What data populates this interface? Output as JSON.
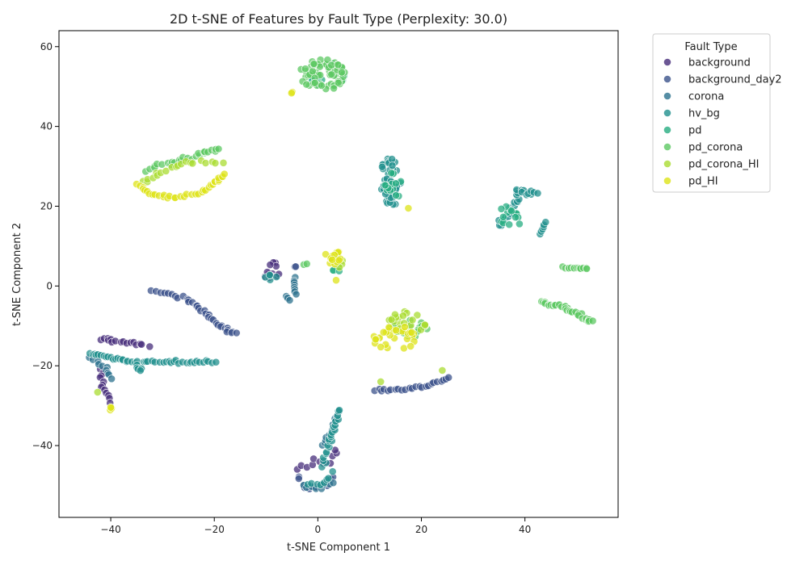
{
  "chart_data": {
    "type": "scatter",
    "title": "2D t-SNE of Features by Fault Type (Perplexity: 30.0)",
    "xlabel": "t-SNE Component 1",
    "ylabel": "t-SNE Component 2",
    "xlim": [
      -50,
      58
    ],
    "ylim": [
      -58,
      64
    ],
    "xticks": [
      -40,
      -20,
      0,
      20,
      40
    ],
    "xtick_labels": [
      "−40",
      "−20",
      "0",
      "20",
      "40"
    ],
    "yticks": [
      -40,
      -20,
      0,
      20,
      40,
      60
    ],
    "ytick_labels": [
      "−40",
      "−20",
      "0",
      "20",
      "40",
      "60"
    ],
    "grid": false,
    "legend": {
      "title": "Fault Type",
      "position": "outside-right-top"
    },
    "series": [
      {
        "name": "background",
        "color": "#472d7b",
        "clusters": [
          {
            "type": "blob",
            "cx": -9,
            "cy": 4,
            "rx": 1.8,
            "ry": 2.2,
            "n": 14
          },
          {
            "type": "path",
            "pts": [
              [
                -42,
                -13
              ],
              [
                -38,
                -14
              ],
              [
                -33,
                -15
              ]
            ],
            "n": 16,
            "jitter": 0.9
          },
          {
            "type": "path",
            "pts": [
              [
                -42,
                -21
              ],
              [
                -41.5,
                -25
              ],
              [
                -40,
                -29
              ]
            ],
            "n": 12,
            "jitter": 0.6
          },
          {
            "type": "path",
            "pts": [
              [
                -4,
                -46
              ],
              [
                -1,
                -44
              ],
              [
                2,
                -45
              ],
              [
                4,
                -41
              ]
            ],
            "n": 12,
            "jitter": 1.0
          }
        ]
      },
      {
        "name": "background_day2",
        "color": "#3b528b",
        "clusters": [
          {
            "type": "path",
            "pts": [
              [
                -32,
                -1
              ],
              [
                -26,
                -3
              ],
              [
                -22,
                -6
              ],
              [
                -19,
                -10
              ],
              [
                -16,
                -12
              ]
            ],
            "n": 34,
            "jitter": 0.7
          },
          {
            "type": "path",
            "pts": [
              [
                11,
                -26
              ],
              [
                16,
                -26
              ],
              [
                21,
                -25
              ],
              [
                25,
                -23
              ]
            ],
            "n": 24,
            "jitter": 0.5
          },
          {
            "type": "path",
            "pts": [
              [
                -4,
                -48
              ],
              [
                -2,
                -51
              ],
              [
                1,
                -50
              ],
              [
                3,
                -48
              ]
            ],
            "n": 12,
            "jitter": 0.8
          },
          {
            "type": "blob",
            "cx": -4.5,
            "cy": 5,
            "rx": 0.3,
            "ry": 0.3,
            "n": 2
          }
        ]
      },
      {
        "name": "corona",
        "color": "#2c728e",
        "clusters": [
          {
            "type": "path",
            "pts": [
              [
                -4.5,
                2
              ],
              [
                -4.3,
                -2
              ]
            ],
            "n": 8,
            "jitter": 0.3
          },
          {
            "type": "path",
            "pts": [
              [
                -6,
                -2.5
              ],
              [
                -5.5,
                -3.5
              ]
            ],
            "n": 3,
            "jitter": 0.3
          },
          {
            "type": "path",
            "pts": [
              [
                -44,
                -18
              ],
              [
                -41,
                -20
              ],
              [
                -40,
                -23
              ]
            ],
            "n": 10,
            "jitter": 0.6
          },
          {
            "type": "path",
            "pts": [
              [
                1,
                -40
              ],
              [
                3,
                -36
              ],
              [
                4,
                -32
              ]
            ],
            "n": 14,
            "jitter": 0.6
          },
          {
            "type": "path",
            "pts": [
              [
                -3,
                -50
              ],
              [
                0,
                -51
              ],
              [
                3,
                -49
              ]
            ],
            "n": 8,
            "jitter": 0.6
          }
        ]
      },
      {
        "name": "hv_bg",
        "color": "#21908d",
        "clusters": [
          {
            "type": "path",
            "pts": [
              [
                -44,
                -17
              ],
              [
                -40,
                -18
              ],
              [
                -36,
                -19
              ],
              [
                -30,
                -19
              ],
              [
                -25,
                -19
              ],
              [
                -20,
                -19
              ]
            ],
            "n": 46,
            "jitter": 0.5
          },
          {
            "type": "path",
            "pts": [
              [
                -35,
                -20
              ],
              [
                -34,
                -21
              ]
            ],
            "n": 5,
            "jitter": 0.6
          },
          {
            "type": "path",
            "pts": [
              [
                1,
                -45
              ],
              [
                2,
                -40
              ],
              [
                3,
                -36
              ],
              [
                4,
                -31
              ]
            ],
            "n": 22,
            "jitter": 0.7
          },
          {
            "type": "path",
            "pts": [
              [
                -2,
                -50
              ],
              [
                1,
                -50
              ],
              [
                3,
                -47
              ]
            ],
            "n": 8,
            "jitter": 0.8
          },
          {
            "type": "blob",
            "cx": 14,
            "cy": 26,
            "rx": 2.2,
            "ry": 6.5,
            "n": 45
          },
          {
            "type": "path",
            "pts": [
              [
                35,
                15
              ],
              [
                38,
                20
              ],
              [
                39,
                24
              ],
              [
                42,
                23
              ]
            ],
            "n": 28,
            "jitter": 1.0
          },
          {
            "type": "path",
            "pts": [
              [
                43,
                13
              ],
              [
                44,
                16
              ]
            ],
            "n": 6,
            "jitter": 0.3
          },
          {
            "type": "blob",
            "cx": -9,
            "cy": 2.5,
            "rx": 1.5,
            "ry": 1.0,
            "n": 5
          }
        ]
      },
      {
        "name": "pd",
        "color": "#27ad81",
        "clusters": [
          {
            "type": "blob",
            "cx": 14.5,
            "cy": 25,
            "rx": 1.6,
            "ry": 4.0,
            "n": 14
          },
          {
            "type": "blob",
            "cx": 37,
            "cy": 17,
            "rx": 2.2,
            "ry": 3.5,
            "n": 14
          },
          {
            "type": "blob",
            "cx": 2,
            "cy": 53,
            "rx": 3.5,
            "ry": 3.5,
            "n": 12
          },
          {
            "type": "blob",
            "cx": 4,
            "cy": 4,
            "rx": 1.2,
            "ry": 1.2,
            "n": 4
          }
        ]
      },
      {
        "name": "pd_corona",
        "color": "#5dc863",
        "clusters": [
          {
            "type": "blob",
            "cx": 1,
            "cy": 53,
            "rx": 4.5,
            "ry": 4.0,
            "n": 70
          },
          {
            "type": "path",
            "pts": [
              [
                43,
                -4
              ],
              [
                47,
                -5
              ],
              [
                50,
                -7
              ],
              [
                53,
                -9
              ]
            ],
            "n": 35,
            "jitter": 0.7
          },
          {
            "type": "path",
            "pts": [
              [
                47.5,
                4.5
              ],
              [
                52,
                4.5
              ]
            ],
            "n": 14,
            "jitter": 0.4
          },
          {
            "type": "path",
            "pts": [
              [
                -33,
                29
              ],
              [
                -28,
                31
              ],
              [
                -23,
                33
              ],
              [
                -19,
                34
              ]
            ],
            "n": 26,
            "jitter": 1.0
          },
          {
            "type": "blob",
            "cx": 18,
            "cy": -10,
            "rx": 3.5,
            "ry": 3.0,
            "n": 18
          },
          {
            "type": "blob",
            "cx": -2.5,
            "cy": 5.5,
            "rx": 0.4,
            "ry": 0.3,
            "n": 2
          }
        ]
      },
      {
        "name": "pd_corona_HI",
        "color": "#aadc32",
        "clusters": [
          {
            "type": "path",
            "pts": [
              [
                -34,
                26
              ],
              [
                -30,
                29
              ],
              [
                -25,
                31
              ],
              [
                -19,
                31
              ]
            ],
            "n": 20,
            "jitter": 1.0
          },
          {
            "type": "blob",
            "cx": 17,
            "cy": -9,
            "rx": 4.0,
            "ry": 3.0,
            "n": 22
          },
          {
            "type": "blob",
            "cx": 3.5,
            "cy": 6,
            "rx": 1.5,
            "ry": 2.2,
            "n": 6
          },
          {
            "type": "blob",
            "cx": -42.5,
            "cy": -26.5,
            "rx": 0.2,
            "ry": 0.2,
            "n": 1
          },
          {
            "type": "blob",
            "cx": 24,
            "cy": -21,
            "rx": 0.2,
            "ry": 0.2,
            "n": 1
          },
          {
            "type": "blob",
            "cx": 12,
            "cy": -24,
            "rx": 0.2,
            "ry": 0.2,
            "n": 1
          }
        ]
      },
      {
        "name": "pd_HI",
        "color": "#dde318",
        "clusters": [
          {
            "type": "path",
            "pts": [
              [
                -35,
                25.5
              ],
              [
                -32,
                23
              ],
              [
                -28,
                22
              ],
              [
                -23,
                23
              ],
              [
                -20,
                26
              ],
              [
                -18,
                28
              ]
            ],
            "n": 36,
            "jitter": 0.6
          },
          {
            "type": "blob",
            "cx": 15,
            "cy": -13,
            "rx": 4.5,
            "ry": 3.0,
            "n": 30
          },
          {
            "type": "blob",
            "cx": 3,
            "cy": 7,
            "rx": 2.0,
            "ry": 2.0,
            "n": 14
          },
          {
            "type": "blob",
            "cx": -5,
            "cy": 48.5,
            "rx": 0.4,
            "ry": 0.3,
            "n": 2
          },
          {
            "type": "blob",
            "cx": -39.8,
            "cy": -31,
            "rx": 0.4,
            "ry": 0.8,
            "n": 4
          },
          {
            "type": "blob",
            "cx": 17.5,
            "cy": 19.5,
            "rx": 0.2,
            "ry": 0.2,
            "n": 1
          },
          {
            "type": "blob",
            "cx": 3.5,
            "cy": 1.5,
            "rx": 0.2,
            "ry": 0.2,
            "n": 1
          }
        ]
      }
    ]
  }
}
